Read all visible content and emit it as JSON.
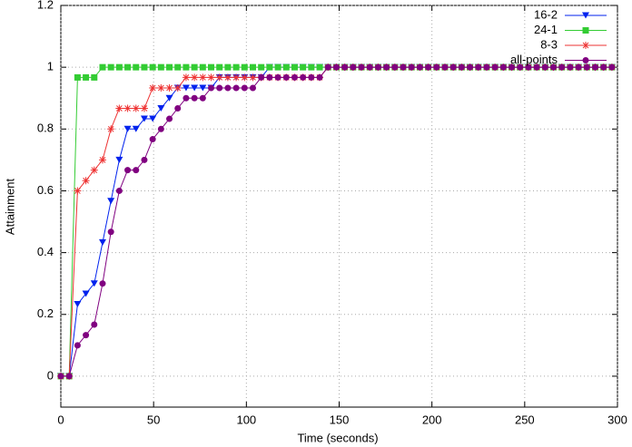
{
  "chart_data": {
    "type": "line",
    "xlabel": "Time (seconds)",
    "ylabel": "Attainment",
    "x": [
      0,
      4.5,
      9,
      13.5,
      18,
      22.5,
      27,
      31.5,
      36,
      40.5,
      45,
      49.5,
      54,
      58.5,
      63,
      67.5,
      72,
      76.5,
      81,
      85.5,
      90,
      94.5,
      99,
      103.5,
      108,
      112.5,
      117,
      121.5,
      126,
      130.5,
      135,
      139.5,
      144,
      148.5,
      153,
      157.5,
      162,
      166.5,
      171,
      175.5,
      180,
      184.5,
      189,
      193.5,
      198,
      202.5,
      207,
      211.5,
      216,
      220.5,
      225,
      229.5,
      234,
      238.5,
      243,
      247.5,
      252,
      256.5,
      261,
      265.5,
      270,
      274.5,
      279,
      283.5,
      288,
      292.5,
      297
    ],
    "series": [
      {
        "name": "16-2",
        "color": "#0022ee",
        "marker": "triangle-down",
        "values": [
          0,
          0,
          0.233,
          0.267,
          0.3,
          0.433,
          0.567,
          0.7,
          0.8,
          0.8,
          0.833,
          0.833,
          0.867,
          0.9,
          0.933,
          0.933,
          0.933,
          0.933,
          0.933,
          0.967,
          0.967,
          0.967,
          0.967,
          0.967,
          0.967,
          1,
          1,
          1,
          1,
          1,
          1,
          1,
          1,
          1,
          1,
          1,
          1,
          1,
          1,
          1,
          1,
          1,
          1,
          1,
          1,
          1,
          1,
          1,
          1,
          1,
          1,
          1,
          1,
          1,
          1,
          1,
          1,
          1,
          1,
          1,
          1,
          1,
          1,
          1,
          1,
          1,
          1
        ]
      },
      {
        "name": "24-1",
        "color": "#33cc33",
        "marker": "square",
        "values": [
          0,
          0,
          0.967,
          0.967,
          0.967,
          1,
          1,
          1,
          1,
          1,
          1,
          1,
          1,
          1,
          1,
          1,
          1,
          1,
          1,
          1,
          1,
          1,
          1,
          1,
          1,
          1,
          1,
          1,
          1,
          1,
          1,
          1,
          1,
          1,
          1,
          1,
          1,
          1,
          1,
          1,
          1,
          1,
          1,
          1,
          1,
          1,
          1,
          1,
          1,
          1,
          1,
          1,
          1,
          1,
          1,
          1,
          1,
          1,
          1,
          1,
          1,
          1,
          1,
          1,
          1,
          1,
          1
        ]
      },
      {
        "name": "8-3",
        "color": "#ee3333",
        "marker": "star",
        "values": [
          0,
          0,
          0.6,
          0.633,
          0.667,
          0.7,
          0.8,
          0.867,
          0.867,
          0.867,
          0.867,
          0.933,
          0.933,
          0.933,
          0.933,
          0.967,
          0.967,
          0.967,
          0.967,
          0.967,
          0.967,
          0.967,
          0.967,
          0.967,
          0.967,
          0.967,
          0.967,
          0.967,
          0.967,
          0.967,
          0.967,
          0.967,
          1,
          1,
          1,
          1,
          1,
          1,
          1,
          1,
          1,
          1,
          1,
          1,
          1,
          1,
          1,
          1,
          1,
          1,
          1,
          1,
          1,
          1,
          1,
          1,
          1,
          1,
          1,
          1,
          1,
          1,
          1,
          1,
          1,
          1,
          1
        ]
      },
      {
        "name": "all-points",
        "color": "#800080",
        "marker": "circle",
        "values": [
          0,
          0,
          0.1,
          0.133,
          0.167,
          0.3,
          0.467,
          0.6,
          0.667,
          0.667,
          0.7,
          0.767,
          0.8,
          0.833,
          0.867,
          0.9,
          0.9,
          0.9,
          0.933,
          0.933,
          0.933,
          0.933,
          0.933,
          0.933,
          0.967,
          0.967,
          0.967,
          0.967,
          0.967,
          0.967,
          0.967,
          0.967,
          1,
          1,
          1,
          1,
          1,
          1,
          1,
          1,
          1,
          1,
          1,
          1,
          1,
          1,
          1,
          1,
          1,
          1,
          1,
          1,
          1,
          1,
          1,
          1,
          1,
          1,
          1,
          1,
          1,
          1,
          1,
          1,
          1,
          1,
          1
        ]
      }
    ],
    "xlim": [
      0,
      300
    ],
    "xticks": [
      0,
      50,
      100,
      150,
      200,
      250,
      300
    ],
    "ylim": [
      -0.1,
      1.2
    ],
    "yticks": [
      0,
      0.2,
      0.4,
      0.6,
      0.8,
      1,
      1.2
    ],
    "grid": true,
    "legend": "top-right"
  }
}
